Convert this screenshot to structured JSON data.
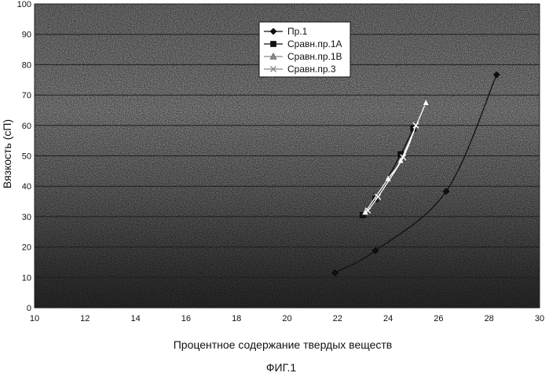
{
  "chart_data": {
    "type": "line",
    "title": "",
    "xlabel": "Процентное содержание твердых веществ",
    "ylabel": "Вязкость (сП)",
    "caption": "ФИГ.1",
    "xlim": [
      10,
      30
    ],
    "ylim": [
      0,
      100
    ],
    "xticks": [
      10,
      12,
      14,
      16,
      18,
      20,
      22,
      24,
      26,
      28,
      30
    ],
    "yticks": [
      0,
      10,
      20,
      30,
      40,
      50,
      60,
      70,
      80,
      90,
      100
    ],
    "grid": true,
    "legend_position": "top-center",
    "background": "dark-speckled",
    "series": [
      {
        "name": "Пр.1",
        "marker": "diamond",
        "color": "#111111",
        "x": [
          21.9,
          23.5,
          26.3,
          28.3
        ],
        "y": [
          11.5,
          18.8,
          38.3,
          76.7
        ]
      },
      {
        "name": "Сравн.пр.1А",
        "marker": "square",
        "color": "#111111",
        "x": [
          23.0,
          23.5,
          24.5,
          25.0
        ],
        "y": [
          30.5,
          35.8,
          50.5,
          59.0
        ]
      },
      {
        "name": "Сравн.пр.1В",
        "marker": "triangle",
        "color": "#ffffff",
        "x": [
          23.1,
          24.0,
          24.5,
          25.5
        ],
        "y": [
          31.5,
          42.5,
          48.5,
          67.5
        ]
      },
      {
        "name": "Сравн.пр.3",
        "marker": "x",
        "color": "#ffffff",
        "x": [
          23.2,
          23.6,
          24.6,
          25.1
        ],
        "y": [
          32.0,
          36.5,
          49.5,
          60.0
        ]
      }
    ]
  }
}
